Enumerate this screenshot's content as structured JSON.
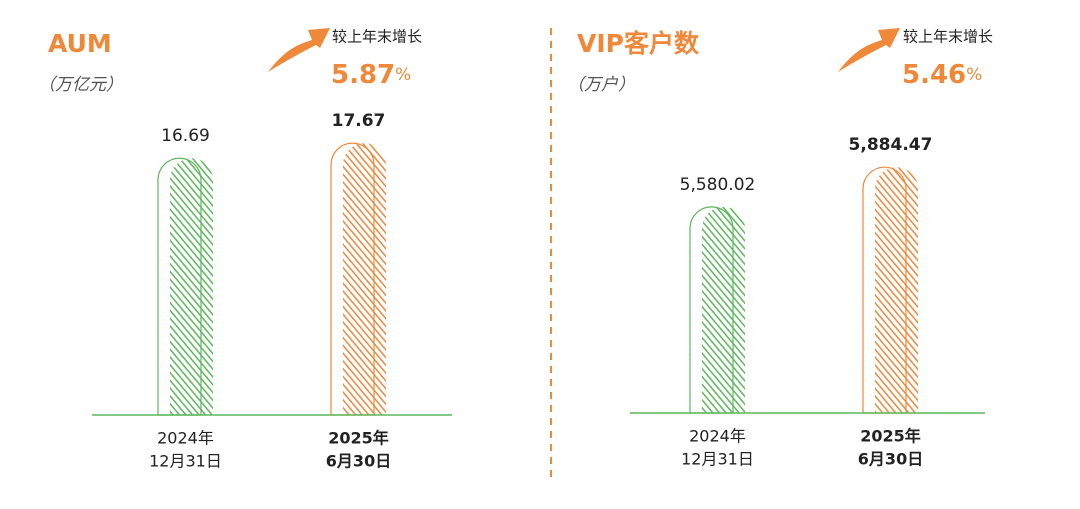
{
  "chart_data": [
    {
      "type": "bar",
      "title": "AUM",
      "subtitle": "（万亿元）",
      "growth_label": "较上年末增长",
      "growth_value": 5.87,
      "growth_unit": "%",
      "categories": [
        [
          "2024年",
          "12月31日"
        ],
        [
          "2025年",
          "6月30日"
        ]
      ],
      "values": [
        16.69,
        17.67
      ],
      "colors": [
        "#5cb85c",
        "#f0883a"
      ],
      "ylim": [
        0,
        19.5
      ]
    },
    {
      "type": "bar",
      "title": "VIP客户数",
      "subtitle": "（万户）",
      "growth_label": "较上年末增长",
      "growth_value": 5.46,
      "growth_unit": "%",
      "categories": [
        [
          "2024年",
          "12月31日"
        ],
        [
          "2025年",
          "6月30日"
        ]
      ],
      "values": [
        5580.02,
        5884.47
      ],
      "value_labels": [
        "5,580.02",
        "5,884.47"
      ],
      "colors": [
        "#5cb85c",
        "#f0883a"
      ],
      "ylim": [
        4000,
        6300
      ]
    }
  ]
}
